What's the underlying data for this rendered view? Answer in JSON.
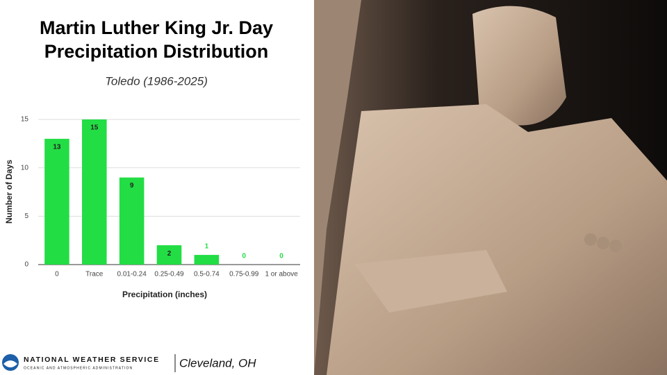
{
  "chart_data": {
    "type": "bar",
    "title": [
      "Martin Luther King Jr. Day",
      "Precipitation Distribution"
    ],
    "subtitle": "Toledo (1986-2025)",
    "x_label": "Precipitation (inches)",
    "y_label": "Number of Days",
    "categories": [
      "0",
      "Trace",
      "0.01-0.24",
      "0.25-0.49",
      "0.5-0.74",
      "0.75-0.99",
      "1 or above"
    ],
    "values": [
      13,
      15,
      9,
      2,
      1,
      0,
      0
    ],
    "color": "#22dd44",
    "ylim": [
      0,
      15
    ],
    "yticks": [
      0,
      5,
      10,
      15
    ],
    "grid": true
  },
  "footer": {
    "agency": "NATIONAL WEATHER SERVICE",
    "agency_sub": "OCEANIC AND ATMOSPHERIC ADMINISTRATION",
    "office": "Cleveland, OH"
  }
}
